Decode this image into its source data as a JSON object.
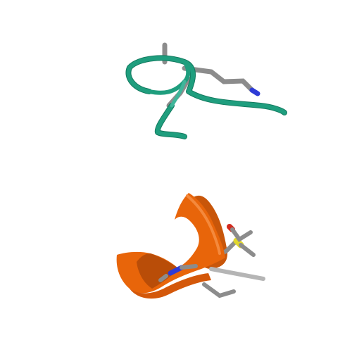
{
  "scene": {
    "background_color": "#ffffff",
    "molecules": [
      {
        "name": "coil-chain",
        "representation": "cartoon-coil",
        "color": "#1f9e7e",
        "shadow_color": "#137a5f",
        "side_chains": [
          {
            "name": "lysine-like-side-chain",
            "atoms": [
              "carbon",
              "carbon",
              "carbon",
              "nitrogen"
            ]
          },
          {
            "name": "branch-side-chain",
            "atoms": [
              "carbon",
              "carbon"
            ]
          },
          {
            "name": "short-side-chain",
            "atoms": [
              "carbon"
            ]
          }
        ]
      },
      {
        "name": "helix-chain",
        "representation": "cartoon-helix",
        "color": "#e8650a",
        "shadow_color": "#a84507",
        "side_chains": [
          {
            "name": "methionine-like-side-chain",
            "atoms": [
              "carbon",
              "sulfur",
              "oxygen",
              "carbon"
            ]
          },
          {
            "name": "amide-side-chain",
            "atoms": [
              "carbon",
              "nitrogen"
            ]
          },
          {
            "name": "aliphatic-side-chain",
            "atoms": [
              "carbon",
              "carbon"
            ]
          }
        ]
      }
    ],
    "element_colors": {
      "carbon": "#8c8c8c",
      "nitrogen": "#2e3bd6",
      "oxygen": "#d42a1e",
      "sulfur": "#e1d72c"
    }
  }
}
